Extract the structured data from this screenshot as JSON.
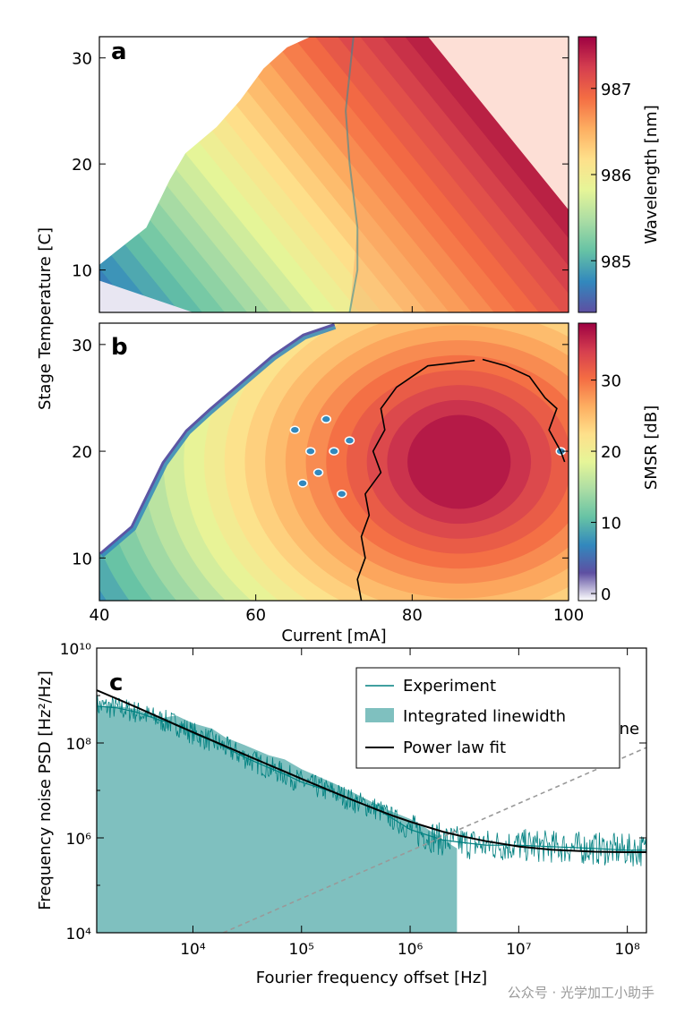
{
  "figure": {
    "watermark": "公众号 · 光学加工小助手"
  },
  "chart_data": [
    {
      "type": "heatmap",
      "panel": "a",
      "panel_label": "a",
      "xlabel": "Current [mA]",
      "ylabel": "Stage Temperature [C]",
      "xlim": [
        40,
        100
      ],
      "ylim": [
        6,
        32
      ],
      "yticks": [
        10,
        20,
        30
      ],
      "ytick_labels": [
        "10",
        "20",
        "30"
      ],
      "colorbar_label": "Wavelength [nm]",
      "colorbar_range": [
        984.4,
        987.6
      ],
      "colorbar_ticks": [
        985,
        986,
        987
      ],
      "colorbar_tick_labels": [
        "985",
        "986",
        "987"
      ],
      "colormap": [
        "#5e4fa2",
        "#3288bd",
        "#66c2a5",
        "#abdda4",
        "#e6f598",
        "#fee08b",
        "#fdae61",
        "#f46d43",
        "#d53e4f",
        "#9e0142"
      ],
      "lasing_boundary": [
        [
          40,
          10.5
        ],
        [
          46,
          14
        ],
        [
          48,
          17
        ],
        [
          49,
          18.5
        ],
        [
          51,
          21
        ],
        [
          55,
          23.5
        ],
        [
          58,
          26
        ],
        [
          61,
          29
        ],
        [
          64,
          31
        ],
        [
          67,
          32
        ]
      ],
      "mode_hop": [
        [
          72.5,
          32
        ],
        [
          71.5,
          25
        ],
        [
          72,
          20
        ],
        [
          73,
          14
        ],
        [
          73,
          10
        ],
        [
          72,
          6
        ]
      ],
      "description": "Wavelength map: rises with current and temperature, mode hop near 72 mA"
    },
    {
      "type": "heatmap",
      "panel": "b",
      "panel_label": "b",
      "xlabel": "Current [mA]",
      "ylabel": "Stage Temperature [C]",
      "xlim": [
        40,
        100
      ],
      "ylim": [
        6,
        32
      ],
      "xticks": [
        40,
        60,
        80,
        100
      ],
      "xtick_labels": [
        "40",
        "60",
        "80",
        "100"
      ],
      "yticks": [
        10,
        20,
        30
      ],
      "ytick_labels": [
        "10",
        "20",
        "30"
      ],
      "colorbar_label": "SMSR [dB]",
      "colorbar_range": [
        -1,
        38
      ],
      "colorbar_ticks": [
        0,
        10,
        20,
        30
      ],
      "colorbar_tick_labels": [
        "0",
        "10",
        "20",
        "30"
      ],
      "colormap": [
        "#ffffff",
        "#5e4fa2",
        "#3288bd",
        "#66c2a5",
        "#abdda4",
        "#e6f598",
        "#fee08b",
        "#fdae61",
        "#f46d43",
        "#d53e4f",
        "#9e0142"
      ],
      "contour_30dB": [
        [
          [
            73.5,
            6
          ],
          [
            73,
            8
          ],
          [
            74,
            10
          ],
          [
            73.5,
            12
          ],
          [
            74.5,
            14
          ],
          [
            74,
            16
          ],
          [
            76,
            18
          ],
          [
            75,
            20
          ],
          [
            76.5,
            22
          ],
          [
            76,
            24
          ],
          [
            78,
            26
          ],
          [
            82,
            28
          ],
          [
            88,
            28.5
          ]
        ],
        [
          [
            89,
            28.6
          ],
          [
            92,
            28
          ],
          [
            95,
            27
          ],
          [
            97,
            25
          ],
          [
            98.5,
            24
          ],
          [
            97.5,
            22
          ],
          [
            99,
            20
          ],
          [
            99.5,
            19
          ]
        ]
      ],
      "description": "Side-mode suppression ratio map, black contour at 30 dB"
    },
    {
      "type": "line",
      "panel": "c",
      "panel_label": "c",
      "xlabel": "Fourier frequency offset [Hz]",
      "ylabel": "Frequency noise PSD [Hz²/Hz]",
      "xscale": "log",
      "yscale": "log",
      "xlim": [
        1300,
        150000000
      ],
      "ylim": [
        10000,
        10000000000
      ],
      "xticks": [
        10000,
        100000,
        1000000,
        10000000,
        100000000
      ],
      "xtick_labels": [
        "10⁴",
        "10⁵",
        "10⁶",
        "10⁷",
        "10⁸"
      ],
      "yticks": [
        10000,
        1000000,
        100000000,
        10000000000
      ],
      "ytick_labels": [
        "10⁴",
        "10⁶",
        "10⁸",
        "10¹⁰"
      ],
      "legend_position": "top-right",
      "series": [
        {
          "name": "Experiment",
          "color": "#008080",
          "style": "line",
          "x": [
            1300,
            2000,
            3000,
            5000,
            7000,
            10000,
            15000,
            20000,
            30000,
            50000,
            70000,
            100000,
            200000,
            300000,
            500000,
            700000,
            1000000,
            2000000,
            3000000,
            5000000,
            10000000,
            20000000,
            50000000,
            100000000,
            150000000
          ],
          "y": [
            600000000,
            550000000,
            450000000,
            300000000,
            250000000,
            160000000,
            110000000,
            80000000,
            50000000,
            30000000,
            22000000,
            15000000,
            9000000,
            6000000,
            4000000,
            2500000,
            1500000,
            900000,
            800000,
            700000,
            700000,
            650000,
            600000,
            550000,
            550000
          ]
        },
        {
          "name": "Integrated linewidth",
          "color": "#7fc0bf",
          "style": "area",
          "x": [
            1300,
            2000,
            3000,
            5000,
            7000,
            10000,
            15000,
            20000,
            30000,
            50000,
            70000,
            100000,
            200000,
            300000,
            500000,
            700000,
            1000000,
            1300000,
            1700000,
            2200000,
            2700000
          ],
          "y": [
            600000000,
            600000000,
            520000000,
            330000000,
            380000000,
            260000000,
            200000000,
            130000000,
            90000000,
            55000000,
            45000000,
            28000000,
            14000000,
            9000000,
            5000000,
            3500000,
            2500000,
            1800000,
            1200000,
            800000,
            600000
          ]
        },
        {
          "name": "Power law fit",
          "color": "#000000",
          "style": "line",
          "x": [
            1300,
            2000,
            3000,
            5000,
            7000,
            10000,
            15000,
            20000,
            30000,
            50000,
            70000,
            100000,
            200000,
            300000,
            500000,
            700000,
            1000000,
            2000000,
            3000000,
            5000000,
            10000000,
            20000000,
            50000000,
            100000000,
            150000000
          ],
          "y": [
            1300000000,
            850000000,
            570000000,
            340000000,
            240000000,
            169000000,
            113000000,
            85000000,
            57000000,
            34500000,
            25000000,
            17500000,
            9100000,
            6200000,
            3900000,
            2900000,
            2200000,
            1350000,
            1080000,
            850000,
            660000,
            560000,
            510000,
            500000,
            500000
          ]
        },
        {
          "name": "β-line",
          "color": "#999999",
          "style": "dashed",
          "x": [
            19000,
            150000000
          ],
          "y": [
            10000,
            80000000
          ]
        }
      ],
      "annotations": [
        {
          "text": "β-line",
          "x": 80000000,
          "y": 2000000
        }
      ]
    }
  ]
}
